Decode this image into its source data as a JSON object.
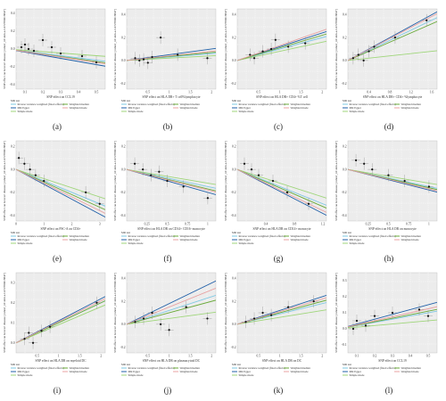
{
  "figure": {
    "legend_title": "MR test",
    "methods": [
      {
        "key": "ivw",
        "label": "Inverse variance weighted (fixed effects)",
        "color": "#7ec8e3"
      },
      {
        "key": "egger",
        "label": "MR Egger",
        "color": "#1f5fa8"
      },
      {
        "key": "simple",
        "label": "Simple mode",
        "color": "#9fd67a"
      },
      {
        "key": "wmedian",
        "label": "Weighted median",
        "color": "#6aaa3a"
      },
      {
        "key": "wmode",
        "label": "Weighted mode",
        "color": "#e8a0a0"
      }
    ],
    "ylabel": "SNP effect on Graves' disease [cohort_id: ukb-a-GCST90018847]"
  },
  "chart_data": [
    {
      "type": "scatter",
      "panel": "(a)",
      "xlabel": "SNP effect on CCL19",
      "xticks": [
        0.1,
        0.2,
        0.3,
        0.4,
        0.5
      ],
      "yticks": [
        0.4,
        0.2,
        0.0,
        -0.2,
        -0.4
      ],
      "xlim": [
        0.05,
        0.55
      ],
      "ylim": [
        -0.45,
        0.45
      ],
      "points": [
        [
          0.08,
          0.02
        ],
        [
          0.1,
          0.05
        ],
        [
          0.12,
          0.0
        ],
        [
          0.15,
          -0.02
        ],
        [
          0.2,
          0.1
        ],
        [
          0.25,
          0.02
        ],
        [
          0.3,
          -0.05
        ],
        [
          0.42,
          -0.08
        ],
        [
          0.5,
          -0.15
        ]
      ],
      "lines": {
        "ivw": -0.25,
        "egger": -0.35,
        "simple": -0.15,
        "wmedian": -0.28,
        "wmode": -0.3
      }
    },
    {
      "type": "scatter",
      "panel": "(b)",
      "xlabel": "SNP effect on HLA DR+ T cell%lymphocyte",
      "xticks": [
        0.5,
        1.0,
        1.5,
        2.0
      ],
      "yticks": [
        0.4,
        0.2,
        0.0,
        -0.2
      ],
      "xlim": [
        0,
        2.1
      ],
      "ylim": [
        -0.25,
        0.45
      ],
      "points": [
        [
          0.2,
          0.02
        ],
        [
          0.3,
          0.0
        ],
        [
          0.4,
          0.01
        ],
        [
          0.5,
          -0.02
        ],
        [
          0.6,
          0.03
        ],
        [
          0.8,
          0.2
        ],
        [
          1.2,
          0.05
        ],
        [
          1.9,
          0.02
        ]
      ],
      "lines": {
        "ivw": 0.03,
        "egger": 0.05,
        "simple": 0.02,
        "wmedian": 0.035,
        "wmode": 0.04
      }
    },
    {
      "type": "scatter",
      "panel": "(c)",
      "xlabel": "SNP effect on HLA DR+ CD4+ %T cell",
      "xticks": [
        0.5,
        1.0,
        1.5,
        2.0
      ],
      "yticks": [
        0.4,
        0.2,
        0.0,
        -0.2
      ],
      "xlim": [
        0,
        2.1
      ],
      "ylim": [
        -0.25,
        0.45
      ],
      "points": [
        [
          0.3,
          0.05
        ],
        [
          0.4,
          0.02
        ],
        [
          0.6,
          0.08
        ],
        [
          0.8,
          0.1
        ],
        [
          0.9,
          0.18
        ],
        [
          1.2,
          0.12
        ],
        [
          1.6,
          0.15
        ]
      ],
      "lines": {
        "ivw": 0.1,
        "egger": 0.12,
        "simple": 0.08,
        "wmedian": 0.11,
        "wmode": 0.13
      }
    },
    {
      "type": "scatter",
      "panel": "(d)",
      "xlabel": "SNP effect on HLA DR+ CD4+ %lymphocyte",
      "xticks": [
        0.4,
        0.8,
        1.2,
        1.6
      ],
      "yticks": [
        0.4,
        0.2,
        0.0,
        -0.2
      ],
      "xlim": [
        0,
        1.7
      ],
      "ylim": [
        -0.25,
        0.45
      ],
      "points": [
        [
          0.1,
          0.02
        ],
        [
          0.2,
          0.05
        ],
        [
          0.3,
          0.0
        ],
        [
          0.4,
          0.08
        ],
        [
          0.5,
          0.12
        ],
        [
          0.9,
          0.2
        ],
        [
          1.5,
          0.35
        ]
      ],
      "lines": {
        "ivw": 0.22,
        "egger": 0.25,
        "simple": 0.05,
        "wmedian": 0.2,
        "wmode": 0.24
      }
    },
    {
      "type": "scatter",
      "panel": "(e)",
      "xlabel": "SNP effect on FSC-A on CD4+",
      "xticks": [
        0,
        1,
        2,
        3
      ],
      "yticks": [
        0.2,
        0.0,
        -0.2,
        -0.4
      ],
      "xlim": [
        0,
        3.2
      ],
      "ylim": [
        -0.45,
        0.25
      ],
      "points": [
        [
          0.1,
          0.1
        ],
        [
          0.3,
          0.05
        ],
        [
          0.5,
          0.0
        ],
        [
          0.7,
          -0.05
        ],
        [
          1.0,
          -0.1
        ],
        [
          2.5,
          -0.2
        ],
        [
          3.0,
          -0.3
        ]
      ],
      "lines": {
        "ivw": -0.1,
        "egger": -0.13,
        "simple": -0.08,
        "wmedian": -0.11,
        "wmode": -0.12
      }
    },
    {
      "type": "scatter",
      "panel": "(f)",
      "xlabel": "SNP effect on HLA DR on CD14+ CD16- monocyte",
      "xticks": [
        0.25,
        0.5,
        0.75,
        1.0
      ],
      "yticks": [
        0.2,
        0.0,
        -0.2,
        -0.4
      ],
      "xlim": [
        0,
        1.1
      ],
      "ylim": [
        -0.45,
        0.25
      ],
      "points": [
        [
          0.1,
          0.05
        ],
        [
          0.2,
          0.0
        ],
        [
          0.3,
          -0.05
        ],
        [
          0.4,
          -0.02
        ],
        [
          0.5,
          -0.1
        ],
        [
          0.7,
          -0.15
        ],
        [
          1.0,
          -0.25
        ]
      ],
      "lines": {
        "ivw": -0.15,
        "egger": -0.2,
        "simple": -0.12,
        "wmedian": -0.17,
        "wmode": -0.18
      }
    },
    {
      "type": "scatter",
      "panel": "(g)",
      "xlabel": "SNP effect on HLA DR on CD14+ monocyte",
      "xticks": [
        0.4,
        0.8,
        1.2
      ],
      "yticks": [
        0.2,
        0.0,
        -0.2,
        -0.4
      ],
      "xlim": [
        0,
        1.25
      ],
      "ylim": [
        -0.45,
        0.25
      ],
      "points": [
        [
          0.1,
          0.05
        ],
        [
          0.2,
          0.0
        ],
        [
          0.3,
          -0.05
        ],
        [
          0.5,
          -0.1
        ],
        [
          0.7,
          -0.2
        ],
        [
          1.0,
          -0.3
        ]
      ],
      "lines": {
        "ivw": -0.25,
        "egger": -0.32,
        "simple": -0.2,
        "wmedian": -0.27,
        "wmode": -0.3
      }
    },
    {
      "type": "scatter",
      "panel": "(h)",
      "xlabel": "SNP effect on HLA DR on monocyte",
      "xticks": [
        0.25,
        0.5,
        0.75,
        1.0
      ],
      "yticks": [
        0.2,
        0.0,
        -0.2,
        -0.4
      ],
      "xlim": [
        0,
        1.1
      ],
      "ylim": [
        -0.45,
        0.25
      ],
      "points": [
        [
          0.1,
          0.08
        ],
        [
          0.2,
          0.05
        ],
        [
          0.3,
          0.0
        ],
        [
          0.5,
          -0.05
        ],
        [
          0.7,
          -0.1
        ],
        [
          1.0,
          -0.15
        ]
      ],
      "lines": {
        "ivw": -0.15,
        "egger": -0.18,
        "simple": -0.12,
        "wmedian": -0.16,
        "wmode": -0.17
      }
    },
    {
      "type": "scatter",
      "panel": "(i)",
      "xlabel": "SNP effect on HLA DR on myeloid DC",
      "xticks": [
        0.5,
        1.0,
        1.5,
        2.0
      ],
      "yticks": [
        0.3,
        0.2,
        0.1,
        0.0
      ],
      "xlim": [
        0,
        2.1
      ],
      "ylim": [
        -0.05,
        0.35
      ],
      "points": [
        [
          0.2,
          0.02
        ],
        [
          0.3,
          0.05
        ],
        [
          0.4,
          0.0
        ],
        [
          0.6,
          0.06
        ],
        [
          0.8,
          0.08
        ],
        [
          1.9,
          0.2
        ]
      ],
      "lines": {
        "ivw": 0.1,
        "egger": 0.11,
        "simple": 0.09,
        "wmedian": 0.1,
        "wmode": 0.105
      }
    },
    {
      "type": "scatter",
      "panel": "(j)",
      "xlabel": "SNP effect on HLA DR on plasmacytoid DC",
      "xticks": [
        0.5,
        1.0,
        1.5,
        2.0
      ],
      "yticks": [
        0.4,
        0.2,
        0.0,
        -0.2
      ],
      "xlim": [
        0,
        2.1
      ],
      "ylim": [
        -0.25,
        0.45
      ],
      "points": [
        [
          0.2,
          0.02
        ],
        [
          0.4,
          0.05
        ],
        [
          0.6,
          0.1
        ],
        [
          0.8,
          0.0
        ],
        [
          1.0,
          -0.05
        ],
        [
          1.4,
          0.15
        ],
        [
          1.9,
          0.05
        ]
      ],
      "lines": {
        "ivw": 0.12,
        "egger": 0.18,
        "simple": 0.05,
        "wmedian": 0.1,
        "wmode": 0.15
      }
    },
    {
      "type": "scatter",
      "panel": "(k)",
      "xlabel": "SNP effect on HLA DR on DC",
      "xticks": [
        0.5,
        1.0,
        1.5,
        2.0
      ],
      "yticks": [
        0.4,
        0.2,
        0.0,
        -0.2
      ],
      "xlim": [
        0,
        2.1
      ],
      "ylim": [
        -0.25,
        0.45
      ],
      "points": [
        [
          0.2,
          0.02
        ],
        [
          0.4,
          0.05
        ],
        [
          0.6,
          0.1
        ],
        [
          0.8,
          0.08
        ],
        [
          1.2,
          0.15
        ],
        [
          1.8,
          0.2
        ]
      ],
      "lines": {
        "ivw": 0.09,
        "egger": 0.12,
        "simple": 0.06,
        "wmedian": 0.1,
        "wmode": 0.11
      }
    },
    {
      "type": "scatter",
      "panel": "(l)",
      "xlabel": "SNP effect on CCL19",
      "xticks": [
        0.1,
        0.2,
        0.3,
        0.4,
        0.5
      ],
      "yticks": [
        0.3,
        0.2,
        0.1,
        0.0,
        -0.1
      ],
      "xlim": [
        0.05,
        0.55
      ],
      "ylim": [
        -0.15,
        0.35
      ],
      "points": [
        [
          0.08,
          0.0
        ],
        [
          0.1,
          0.05
        ],
        [
          0.15,
          0.02
        ],
        [
          0.2,
          0.08
        ],
        [
          0.3,
          0.1
        ],
        [
          0.45,
          0.12
        ],
        [
          0.5,
          0.08
        ]
      ],
      "lines": {
        "ivw": 0.2,
        "egger": 0.3,
        "simple": 0.1,
        "wmedian": 0.22,
        "wmode": 0.25
      }
    }
  ]
}
